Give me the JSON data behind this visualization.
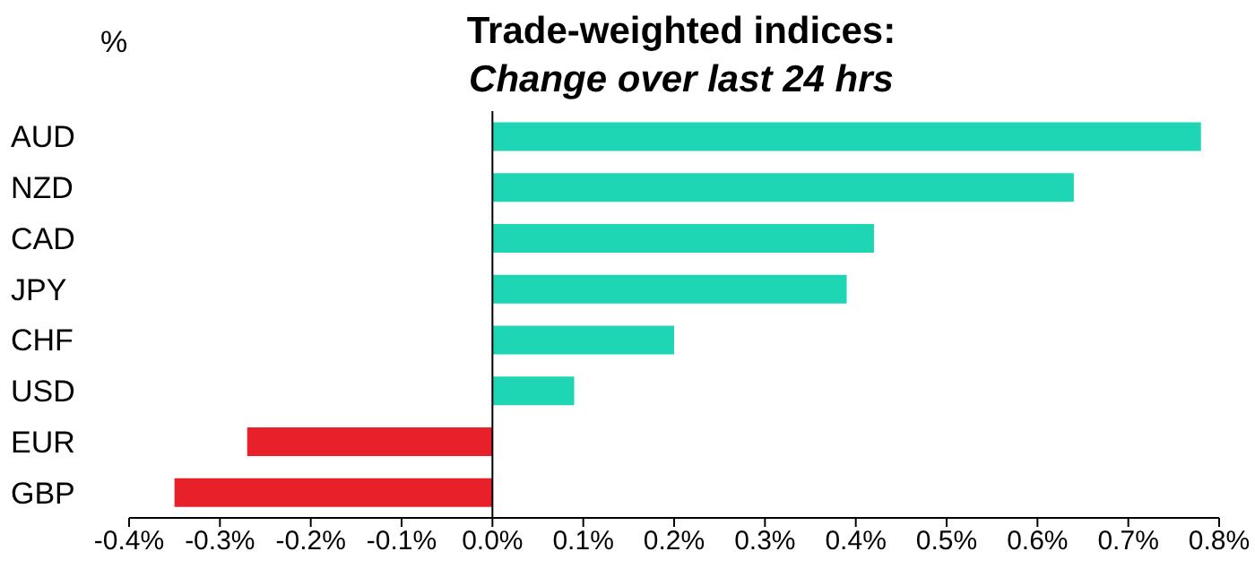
{
  "chart_data": {
    "type": "bar",
    "orientation": "horizontal",
    "title": "Trade-weighted indices:",
    "subtitle": "Change over last 24 hrs",
    "annotations": [
      "%"
    ],
    "categories": [
      "AUD",
      "NZD",
      "CAD",
      "JPY",
      "CHF",
      "USD",
      "EUR",
      "GBP"
    ],
    "values": [
      0.78,
      0.64,
      0.42,
      0.39,
      0.2,
      0.09,
      -0.27,
      -0.35
    ],
    "colors": [
      "#1ed6b4",
      "#1ed6b4",
      "#1ed6b4",
      "#1ed6b4",
      "#1ed6b4",
      "#1ed6b4",
      "#e8202a",
      "#e8202a"
    ],
    "xlim": [
      -0.4,
      0.8
    ],
    "xticks": [
      {
        "value": -0.4,
        "label": "-0.4%"
      },
      {
        "value": -0.3,
        "label": "-0.3%"
      },
      {
        "value": -0.2,
        "label": "-0.2%"
      },
      {
        "value": -0.1,
        "label": "-0.1%"
      },
      {
        "value": 0,
        "label": "0.0%"
      },
      {
        "value": 0.1,
        "label": "0.1%"
      },
      {
        "value": 0.2,
        "label": "0.2%"
      },
      {
        "value": 0.3,
        "label": "0.3%"
      },
      {
        "value": 0.4,
        "label": "0.4%"
      },
      {
        "value": 0.5,
        "label": "0.5%"
      },
      {
        "value": 0.6,
        "label": "0.6%"
      },
      {
        "value": 0.7,
        "label": "0.7%"
      },
      {
        "value": 0.8,
        "label": "0.8%"
      }
    ],
    "ref_lines": [
      {
        "axis": "x",
        "value": 0,
        "color": "#000000"
      }
    ]
  }
}
